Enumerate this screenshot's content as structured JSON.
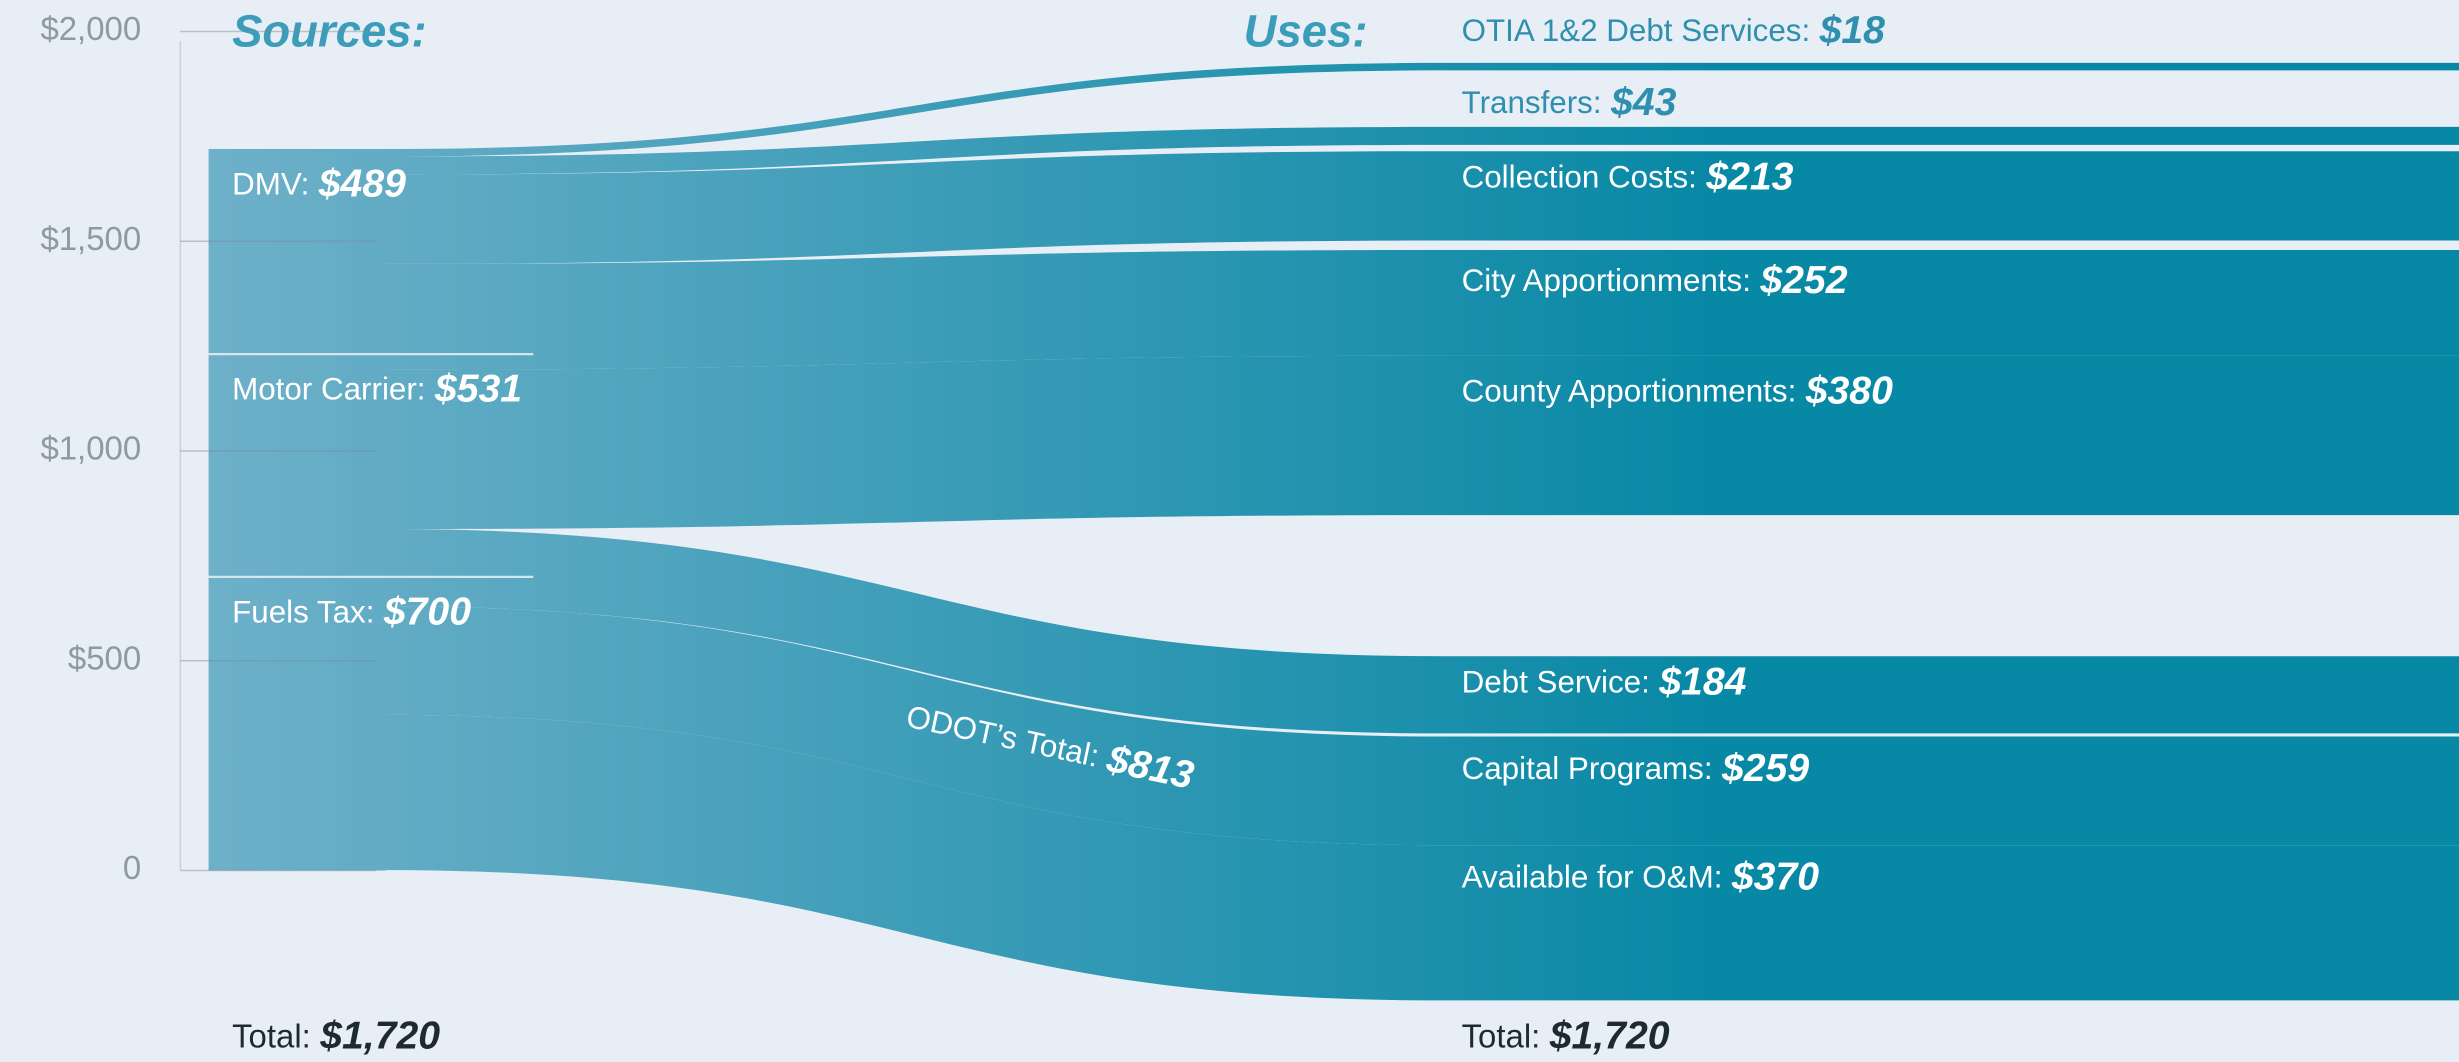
{
  "chart_data": {
    "type": "sankey",
    "sources_title": "Sources:",
    "uses_title": "Uses:",
    "ylim": [
      0,
      2000
    ],
    "yticks": [
      0,
      {
        "value": 500,
        "label": "$500"
      },
      {
        "value": 1000,
        "label": "$1,000"
      },
      {
        "value": 1500,
        "label": "$1,500"
      },
      {
        "value": 2000,
        "label": "$2,000"
      }
    ],
    "sources": {
      "names": [
        "DMV:",
        "Motor Carrier:",
        "Fuels Tax:"
      ],
      "values": [
        489,
        531,
        700
      ],
      "value_labels": [
        "$489",
        "$531",
        "$700"
      ]
    },
    "uses": {
      "names": [
        "OTIA 1&2 Debt Services:",
        "Transfers:",
        "Collection Costs:",
        "City Apportionments:",
        "County Apportionments:",
        "Debt Service:",
        "Capital Programs:",
        "Available for O&M:"
      ],
      "values": [
        18,
        43,
        213,
        252,
        380,
        184,
        259,
        370
      ],
      "value_labels": [
        "$18",
        "$43",
        "$213",
        "$252",
        "$380",
        "$184",
        "$259",
        "$370"
      ]
    },
    "annotation": {
      "label": "ODOT’s Total:",
      "value": 813,
      "value_label": "$813"
    },
    "sources_total": {
      "label": "Total:",
      "value": 1720,
      "value_label": "$1,720"
    },
    "uses_total": {
      "label": "Total:",
      "value": 1720,
      "value_label": "$1,720"
    },
    "colors": {
      "left": "#6eb0c9",
      "right": "#0788a5"
    }
  }
}
